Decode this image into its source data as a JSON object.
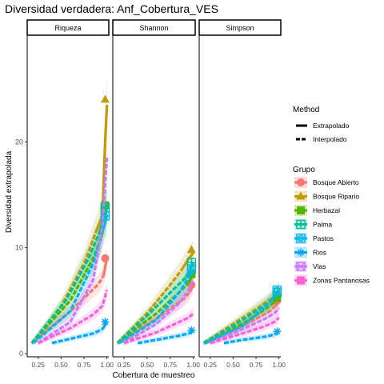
{
  "chart_data": {
    "type": "line",
    "title": "Diversidad verdadera: Anf_Cobertura_VES",
    "xlabel": "Cobertura de muestreo",
    "ylabel": "Diversidad extrapolada",
    "xlim": [
      0.13,
      1.02
    ],
    "ylim": [
      -0.3,
      30
    ],
    "x_ticks": [
      0.25,
      0.5,
      0.75,
      1.0
    ],
    "x_tick_labels": [
      "0.25",
      "0.50",
      "0.75",
      "1.00"
    ],
    "y_ticks": [
      0,
      10,
      20
    ],
    "y_tick_labels": [
      "0",
      "10",
      "20"
    ],
    "facets": [
      "Riqueza",
      "Shannon",
      "Simpson"
    ],
    "grid": false,
    "legend": {
      "position": "right",
      "method_title": "Method",
      "method_items": [
        "Extrapolado",
        "Interpolado"
      ],
      "group_title": "Grupo"
    },
    "series": [
      {
        "name": "Bosque Abierto",
        "color": "#F8766D",
        "marker": "circle",
        "panels": [
          {
            "interp": [
              [
                0.18,
                1
              ],
              [
                0.6,
                4.0
              ],
              [
                0.9,
                6.5
              ],
              [
                0.96,
                7.3
              ]
            ],
            "extrap": [
              [
                0.96,
                7.3
              ],
              [
                1.0,
                9.0
              ]
            ],
            "point": [
              0.98,
              9.0
            ]
          },
          {
            "interp": [
              [
                0.18,
                1
              ],
              [
                0.6,
                3.3
              ],
              [
                0.9,
                5.2
              ],
              [
                0.96,
                5.8
              ]
            ],
            "extrap": [
              [
                0.96,
                5.8
              ],
              [
                1.0,
                6.5
              ]
            ],
            "point": [
              0.98,
              6.5
            ]
          },
          {
            "interp": [
              [
                0.18,
                1
              ],
              [
                0.6,
                2.6
              ],
              [
                0.9,
                4.0
              ],
              [
                0.96,
                4.5
              ]
            ],
            "extrap": [
              [
                0.96,
                4.5
              ],
              [
                1.0,
                5.0
              ]
            ],
            "point": [
              0.98,
              5.0
            ]
          }
        ]
      },
      {
        "name": "Bosque Ripario",
        "color": "#C49A00",
        "marker": "triangle",
        "panels": [
          {
            "interp": [
              [
                0.18,
                1
              ],
              [
                0.5,
                4.5
              ],
              [
                0.75,
                8.5
              ],
              [
                0.88,
                11.5
              ]
            ],
            "extrap": [
              [
                0.88,
                11.5
              ],
              [
                0.95,
                13.0
              ],
              [
                0.98,
                20.0
              ],
              [
                1.0,
                23.5
              ]
            ],
            "point": [
              0.98,
              24.0
            ]
          },
          {
            "interp": [
              [
                0.18,
                1
              ],
              [
                0.5,
                3.8
              ],
              [
                0.75,
                6.5
              ],
              [
                0.88,
                8.0
              ]
            ],
            "extrap": [
              [
                0.88,
                8.0
              ],
              [
                0.95,
                9.0
              ],
              [
                1.0,
                9.5
              ]
            ],
            "point": [
              0.98,
              9.8
            ]
          },
          {
            "interp": [
              [
                0.18,
                1
              ],
              [
                0.5,
                2.8
              ],
              [
                0.75,
                4.2
              ],
              [
                0.88,
                5.0
              ]
            ],
            "extrap": [
              [
                0.88,
                5.0
              ],
              [
                1.0,
                5.6
              ]
            ],
            "point": [
              0.98,
              5.6
            ]
          }
        ]
      },
      {
        "name": "Herbazal",
        "color": "#53B400",
        "marker": "square",
        "panels": [
          {
            "interp": [
              [
                0.18,
                1
              ],
              [
                0.6,
                5.0
              ],
              [
                0.85,
                9.0
              ],
              [
                0.94,
                11.0
              ]
            ],
            "extrap": [
              [
                0.94,
                11.0
              ],
              [
                1.0,
                14.0
              ]
            ],
            "point": [
              0.98,
              14.0
            ]
          },
          {
            "interp": [
              [
                0.18,
                1
              ],
              [
                0.6,
                3.8
              ],
              [
                0.85,
                5.8
              ],
              [
                0.94,
                6.6
              ]
            ],
            "extrap": [
              [
                0.94,
                6.6
              ],
              [
                1.0,
                7.5
              ]
            ],
            "point": [
              0.98,
              7.5
            ]
          },
          {
            "interp": [
              [
                0.18,
                1
              ],
              [
                0.6,
                2.8
              ],
              [
                0.85,
                4.2
              ],
              [
                0.94,
                4.8
              ]
            ],
            "extrap": [
              [
                0.94,
                4.8
              ],
              [
                1.0,
                5.3
              ]
            ],
            "point": [
              0.98,
              5.3
            ]
          }
        ]
      },
      {
        "name": "Palma",
        "color": "#00C094",
        "marker": "squareplus",
        "panels": [
          {
            "interp": [
              [
                0.18,
                1
              ],
              [
                0.55,
                5.0
              ],
              [
                0.8,
                9.0
              ],
              [
                0.92,
                11.5
              ]
            ],
            "extrap": [
              [
                0.92,
                11.5
              ],
              [
                1.0,
                14.0
              ]
            ],
            "point": [
              0.98,
              13.8
            ]
          },
          {
            "interp": [
              [
                0.18,
                1
              ],
              [
                0.55,
                4.0
              ],
              [
                0.8,
                6.2
              ],
              [
                0.92,
                7.2
              ]
            ],
            "extrap": [
              [
                0.92,
                7.2
              ],
              [
                1.0,
                8.6
              ]
            ],
            "point": [
              0.98,
              8.6
            ]
          },
          {
            "interp": [
              [
                0.18,
                1
              ],
              [
                0.55,
                2.9
              ],
              [
                0.8,
                4.3
              ],
              [
                0.92,
                5.0
              ]
            ],
            "extrap": [
              [
                0.92,
                5.0
              ],
              [
                1.0,
                5.8
              ]
            ],
            "point": [
              0.98,
              5.8
            ]
          }
        ]
      },
      {
        "name": "Pastos",
        "color": "#00B6EB",
        "marker": "squarecircle",
        "panels": [
          {
            "interp": [
              [
                0.2,
                1
              ],
              [
                0.6,
                4.0
              ],
              [
                0.85,
                8.5
              ],
              [
                0.95,
                11.5
              ]
            ],
            "extrap": [
              [
                0.95,
                11.5
              ],
              [
                1.0,
                13.0
              ]
            ],
            "point": [
              0.98,
              13.0
            ]
          },
          {
            "interp": [
              [
                0.2,
                1
              ],
              [
                0.6,
                3.2
              ],
              [
                0.85,
                5.8
              ],
              [
                0.95,
                7.2
              ]
            ],
            "extrap": [
              [
                0.95,
                7.2
              ],
              [
                1.0,
                8.0
              ]
            ],
            "point": [
              0.98,
              8.0
            ]
          },
          {
            "interp": [
              [
                0.2,
                1
              ],
              [
                0.6,
                2.6
              ],
              [
                0.85,
                4.4
              ],
              [
                0.95,
                5.4
              ]
            ],
            "extrap": [
              [
                0.95,
                5.4
              ],
              [
                1.0,
                6.0
              ]
            ],
            "point": [
              0.98,
              6.0
            ]
          }
        ]
      },
      {
        "name": "Rios",
        "color": "#06A4FF",
        "marker": "asterisk",
        "panels": [
          {
            "interp": [
              [
                0.4,
                1
              ],
              [
                0.6,
                1.4
              ],
              [
                0.85,
                1.9
              ],
              [
                0.95,
                2.3
              ]
            ],
            "extrap": [
              [
                0.95,
                2.3
              ],
              [
                1.0,
                3.0
              ]
            ],
            "point": [
              0.98,
              3.0
            ]
          },
          {
            "interp": [
              [
                0.4,
                1
              ],
              [
                0.6,
                1.3
              ],
              [
                0.85,
                1.7
              ],
              [
                0.95,
                1.9
              ]
            ],
            "extrap": [
              [
                0.95,
                1.9
              ],
              [
                1.0,
                2.2
              ]
            ],
            "point": [
              0.98,
              2.2
            ]
          },
          {
            "interp": [
              [
                0.4,
                1
              ],
              [
                0.6,
                1.3
              ],
              [
                0.85,
                1.6
              ],
              [
                0.95,
                1.8
              ]
            ],
            "extrap": [
              [
                0.95,
                1.8
              ],
              [
                1.0,
                2.1
              ]
            ],
            "point": [
              0.98,
              2.1
            ]
          }
        ]
      },
      {
        "name": "Vias",
        "color": "#C77CFF",
        "marker": "squarex",
        "panels": [
          {
            "interp": [
              [
                0.25,
                1
              ],
              [
                0.6,
                3.0
              ],
              [
                0.85,
                7.0
              ],
              [
                0.95,
                12.0
              ],
              [
                1.0,
                18.5
              ]
            ],
            "extrap": [],
            "point": null
          },
          {
            "interp": [
              [
                0.25,
                1
              ],
              [
                0.6,
                2.8
              ],
              [
                0.85,
                4.8
              ],
              [
                0.95,
                6.0
              ],
              [
                1.0,
                7.0
              ]
            ],
            "extrap": [],
            "point": null
          },
          {
            "interp": [
              [
                0.25,
                1
              ],
              [
                0.6,
                2.3
              ],
              [
                0.85,
                3.3
              ],
              [
                0.95,
                3.8
              ],
              [
                1.0,
                4.3
              ]
            ],
            "extrap": [],
            "point": null
          }
        ]
      },
      {
        "name": "Zonas Pantanosas",
        "color": "#FB61D7",
        "marker": "square",
        "panels": [
          {
            "interp": [
              [
                0.25,
                1
              ],
              [
                0.6,
                2.4
              ],
              [
                0.85,
                3.7
              ],
              [
                0.95,
                4.5
              ],
              [
                1.0,
                6.0
              ]
            ],
            "extrap": [],
            "point": null
          },
          {
            "interp": [
              [
                0.25,
                1
              ],
              [
                0.6,
                2.0
              ],
              [
                0.85,
                3.0
              ],
              [
                0.95,
                3.4
              ],
              [
                1.0,
                3.8
              ]
            ],
            "extrap": [],
            "point": null
          },
          {
            "interp": [
              [
                0.25,
                1
              ],
              [
                0.6,
                1.9
              ],
              [
                0.85,
                2.6
              ],
              [
                0.95,
                3.0
              ],
              [
                1.0,
                3.4
              ]
            ],
            "extrap": [],
            "point": null
          }
        ]
      }
    ]
  }
}
